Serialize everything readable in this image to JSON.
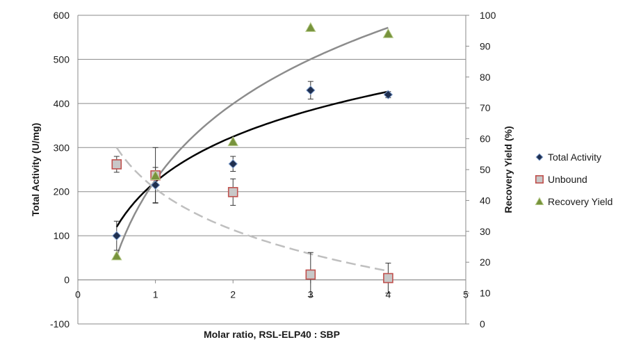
{
  "chart_data": {
    "type": "scatter",
    "xlabel": "Molar ratio, RSL-ELP40 : SBP",
    "ylabel": "Total Activity (U/mg)",
    "ylabel_right": "Recovery Yield  (%)",
    "xlim": [
      0,
      5
    ],
    "ylim": [
      -100,
      600
    ],
    "ylim_right": [
      0,
      100
    ],
    "grid": "horizontal",
    "legend_position": "right",
    "x_ticks": [
      "0",
      "1",
      "2",
      "3",
      "4",
      "5"
    ],
    "y_ticks": [
      "-100",
      "0",
      "100",
      "200",
      "300",
      "400",
      "500",
      "600"
    ],
    "y_right_ticks": [
      "0",
      "10",
      "20",
      "30",
      "40",
      "50",
      "60",
      "70",
      "80",
      "90",
      "100"
    ],
    "series": [
      {
        "name": "Total Activity",
        "axis": "left",
        "marker": "diamond",
        "color": "#1f2f4f",
        "points": [
          {
            "x": 0.5,
            "y": 100,
            "err": 33
          },
          {
            "x": 1,
            "y": 215,
            "err": 40
          },
          {
            "x": 2,
            "y": 263,
            "err": 17
          },
          {
            "x": 3,
            "y": 430,
            "err": 20
          },
          {
            "x": 4,
            "y": 420,
            "err": 7
          }
        ]
      },
      {
        "name": "Unbound",
        "axis": "left",
        "marker": "square",
        "color": "#c0504d",
        "points": [
          {
            "x": 0.5,
            "y": 262,
            "err": 18
          },
          {
            "x": 1,
            "y": 237,
            "err": 63
          },
          {
            "x": 2,
            "y": 199,
            "err": 30
          },
          {
            "x": 3,
            "y": 12,
            "err": 50
          },
          {
            "x": 4,
            "y": 4,
            "err": 34
          }
        ]
      },
      {
        "name": "Recovery Yield",
        "axis": "right",
        "marker": "triangle",
        "color": "#77933c",
        "points": [
          {
            "x": 0.5,
            "y": 22
          },
          {
            "x": 1,
            "y": 48
          },
          {
            "x": 2,
            "y": 59
          },
          {
            "x": 3,
            "y": 96
          },
          {
            "x": 4,
            "y": 94
          }
        ]
      }
    ],
    "trendlines": [
      {
        "name": "Total Activity trend",
        "axis": "left",
        "style": "solid",
        "color": "#000000",
        "type": "log",
        "x_range": [
          0.5,
          4
        ],
        "y_start": 120,
        "y_end": 427
      },
      {
        "name": "Recovery Yield trend",
        "axis": "right",
        "style": "solid",
        "color": "#8c8c8c",
        "type": "log",
        "x_range": [
          0.5,
          4
        ],
        "y_start": 22,
        "y_end": 96
      },
      {
        "name": "Unbound trend",
        "axis": "left",
        "style": "dashed",
        "color": "#bfbfbf",
        "type": "log",
        "x_range": [
          0.5,
          4
        ],
        "y_start": 300,
        "y_end": 20
      }
    ]
  }
}
